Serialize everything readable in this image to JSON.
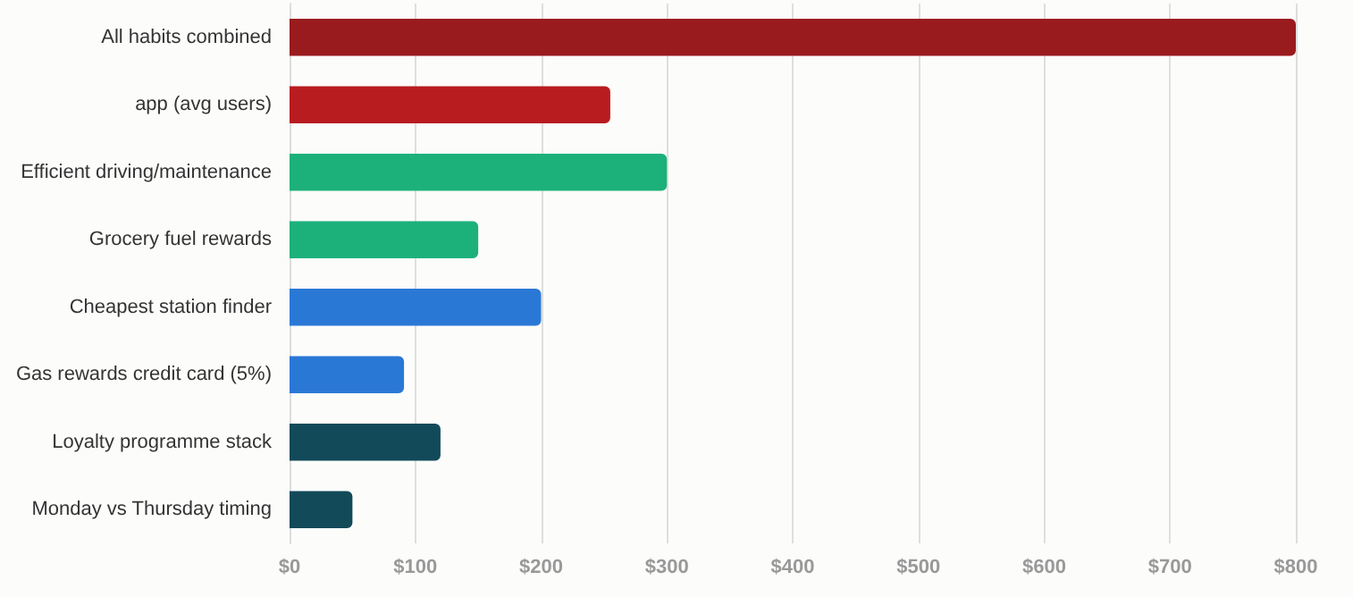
{
  "chart_data": {
    "type": "bar",
    "orientation": "horizontal",
    "categories": [
      "All habits combined",
      "app (avg users)",
      "Efficient driving/maintenance",
      "Grocery fuel rewards",
      "Cheapest station finder",
      "Gas rewards credit card (5%)",
      "Loyalty programme stack",
      "Monday vs Thursday timing"
    ],
    "values": [
      800,
      255,
      300,
      150,
      200,
      91,
      120,
      50
    ],
    "colors": [
      "#9a1b1e",
      "#b91c1f",
      "#1cb07a",
      "#1cb07a",
      "#2a78d6",
      "#2a78d6",
      "#124a5a",
      "#124a5a"
    ],
    "xlim": [
      0,
      800
    ],
    "xticks": [
      {
        "value": 0,
        "label": "$0"
      },
      {
        "value": 100,
        "label": "$100"
      },
      {
        "value": 200,
        "label": "$200"
      },
      {
        "value": 300,
        "label": "$300"
      },
      {
        "value": 400,
        "label": "$400"
      },
      {
        "value": 500,
        "label": "$500"
      },
      {
        "value": 600,
        "label": "$600"
      },
      {
        "value": 700,
        "label": "$700"
      },
      {
        "value": 800,
        "label": "$800"
      }
    ],
    "grid": "x"
  }
}
